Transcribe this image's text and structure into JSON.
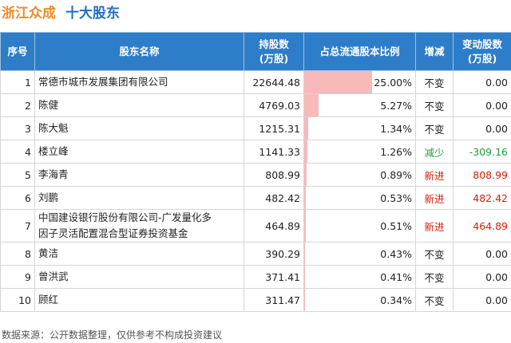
{
  "header": {
    "company": "浙江众成",
    "title": "十大股东"
  },
  "table": {
    "columns": [
      [
        "序号"
      ],
      [
        "股东名称"
      ],
      [
        "持股数",
        "(万股)"
      ],
      [
        "占总流通股本比例"
      ],
      [
        "增减"
      ],
      [
        "变动股数",
        "(万股)"
      ]
    ],
    "change_colors": {
      "不变": "#222222",
      "减少": "#1e9e3e",
      "新进": "#d81e06"
    },
    "bar_color": "#f8b9b9",
    "rows": [
      {
        "rank": 1,
        "name": "常德市城市发展集团有限公司",
        "shares": "22644.48",
        "ratio": {
          "value": 25,
          "label": "25.00%"
        },
        "change": "不变",
        "delta": "0.00"
      },
      {
        "rank": 2,
        "name": "陈健",
        "shares": "4769.03",
        "ratio": {
          "value": 5.27,
          "label": "5.27%"
        },
        "change": "不变",
        "delta": "0.00"
      },
      {
        "rank": 3,
        "name": "陈大魁",
        "shares": "1215.31",
        "ratio": {
          "value": 1.34,
          "label": "1.34%"
        },
        "change": "不变",
        "delta": "0.00"
      },
      {
        "rank": 4,
        "name": "楼立峰",
        "shares": "1141.33",
        "ratio": {
          "value": 1.26,
          "label": "1.26%"
        },
        "change": "减少",
        "delta": "-309.16"
      },
      {
        "rank": 5,
        "name": "李海青",
        "shares": "808.99",
        "ratio": {
          "value": 0.89,
          "label": "0.89%"
        },
        "change": "新进",
        "delta": "808.99"
      },
      {
        "rank": 6,
        "name": "刘鹏",
        "shares": "482.42",
        "ratio": {
          "value": 0.53,
          "label": "0.53%"
        },
        "change": "新进",
        "delta": "482.42"
      },
      {
        "rank": 7,
        "name": "中国建设银行股份有限公司-广发量化多因子灵活配置混合型证券投资基金",
        "shares": "464.89",
        "ratio": {
          "value": 0.51,
          "label": "0.51%"
        },
        "change": "新进",
        "delta": "464.89"
      },
      {
        "rank": 8,
        "name": "黄洁",
        "shares": "390.29",
        "ratio": {
          "value": 0.43,
          "label": "0.43%"
        },
        "change": "不变",
        "delta": "0.00"
      },
      {
        "rank": 9,
        "name": "曾洪武",
        "shares": "371.41",
        "ratio": {
          "value": 0.41,
          "label": "0.41%"
        },
        "change": "不变",
        "delta": "0.00"
      },
      {
        "rank": 10,
        "name": "顾红",
        "shares": "311.47",
        "ratio": {
          "value": 0.34,
          "label": "0.34%"
        },
        "change": "不变",
        "delta": "0.00"
      }
    ]
  },
  "footer": {
    "source": "数据来源：公开数据整理，仅供参考不构成投资建议"
  }
}
